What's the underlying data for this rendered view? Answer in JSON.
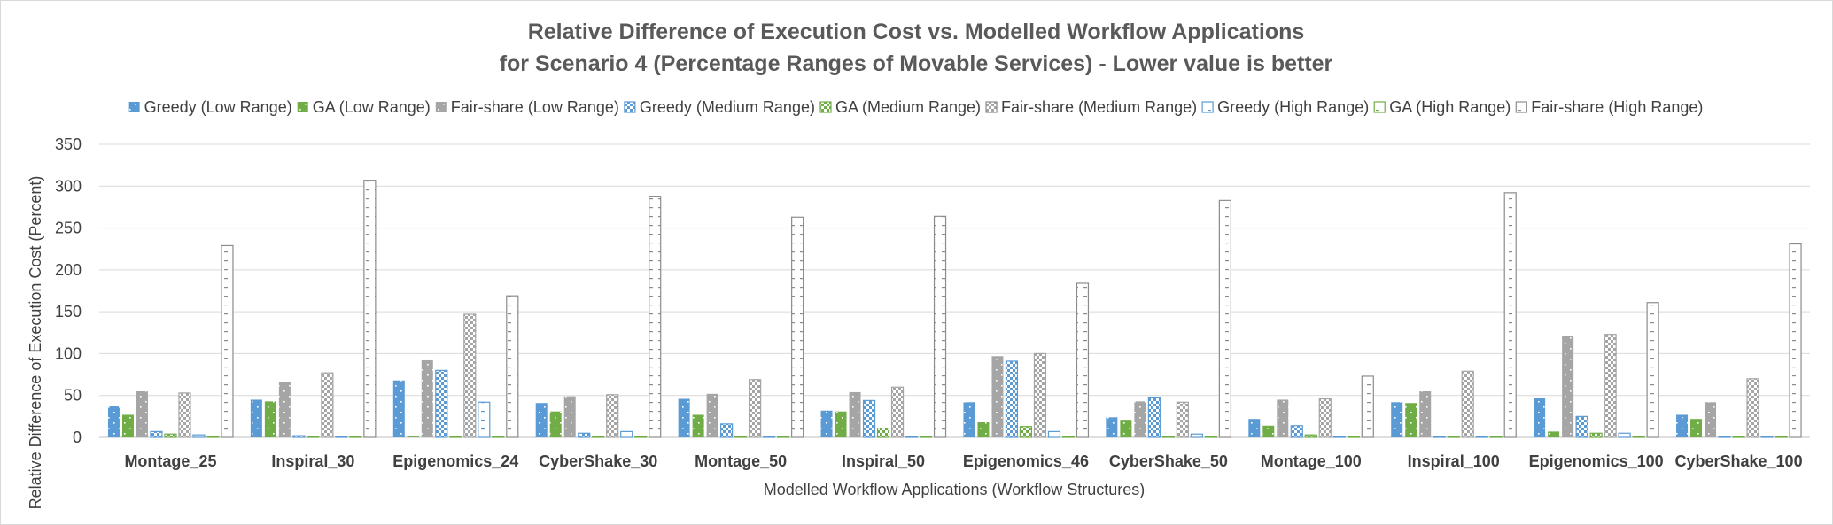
{
  "chart_data": {
    "type": "bar",
    "title": "Relative Difference of Execution Cost vs. Modelled Workflow Applications",
    "subtitle": "for Scenario 4 (Percentage Ranges of Movable Services) - Lower value is better",
    "xlabel": "Modelled Workflow Applications (Workflow Structures)",
    "ylabel": "Relative Difference of Execution Cost (Percent)",
    "ylim": [
      0,
      350
    ],
    "yticks": [
      "0",
      "50",
      "100",
      "150",
      "200",
      "250",
      "300",
      "350"
    ],
    "grid": true,
    "legend_position": "top",
    "categories": [
      "Montage_25",
      "Inspiral_30",
      "Epigenomics_24",
      "CyberShake_30",
      "Montage_50",
      "Inspiral_50",
      "Epigenomics_46",
      "CyberShake_50",
      "Montage_100",
      "Inspiral_100",
      "Epigenomics_100",
      "CyberShake_100"
    ],
    "series": [
      {
        "name": "Greedy (Low Range)",
        "color": "#5b9bd5",
        "pattern": "dots-fill",
        "values": [
          37,
          45,
          68,
          41,
          46,
          32,
          42,
          24,
          22,
          42,
          47,
          27
        ]
      },
      {
        "name": "GA (Low Range)",
        "color": "#70ad47",
        "pattern": "dots-fill",
        "values": [
          27,
          43,
          1,
          31,
          27,
          31,
          18,
          21,
          14,
          41,
          7,
          22
        ]
      },
      {
        "name": "Fair-share (Low Range)",
        "color": "#a5a5a5",
        "pattern": "dots-fill",
        "values": [
          55,
          66,
          92,
          49,
          52,
          54,
          97,
          43,
          45,
          55,
          121,
          42
        ]
      },
      {
        "name": "Greedy (Medium Range)",
        "color": "#5b9bd5",
        "pattern": "checker",
        "values": [
          7,
          2,
          80,
          5,
          16,
          44,
          91,
          48,
          14,
          1,
          25,
          1
        ]
      },
      {
        "name": "GA (Medium Range)",
        "color": "#70ad47",
        "pattern": "checker",
        "values": [
          4,
          1,
          1,
          1,
          1,
          11,
          13,
          1,
          3,
          1,
          5,
          1
        ]
      },
      {
        "name": "Fair-share (Medium Range)",
        "color": "#a5a5a5",
        "pattern": "checker",
        "values": [
          53,
          77,
          147,
          51,
          69,
          60,
          100,
          42,
          46,
          79,
          123,
          70
        ]
      },
      {
        "name": "Greedy (High Range)",
        "color": "#5b9bd5",
        "pattern": "hollow",
        "values": [
          3,
          1,
          42,
          7,
          1,
          1,
          7,
          4,
          1,
          1,
          5,
          1
        ]
      },
      {
        "name": "GA (High Range)",
        "color": "#70ad47",
        "pattern": "hollow",
        "values": [
          1,
          1,
          1,
          1,
          1,
          1,
          1,
          1,
          1,
          1,
          1,
          1
        ]
      },
      {
        "name": "Fair-share (High Range)",
        "color": "#a5a5a5",
        "pattern": "hollow",
        "values": [
          229,
          307,
          169,
          288,
          263,
          264,
          184,
          283,
          73,
          292,
          161,
          231
        ]
      }
    ]
  }
}
